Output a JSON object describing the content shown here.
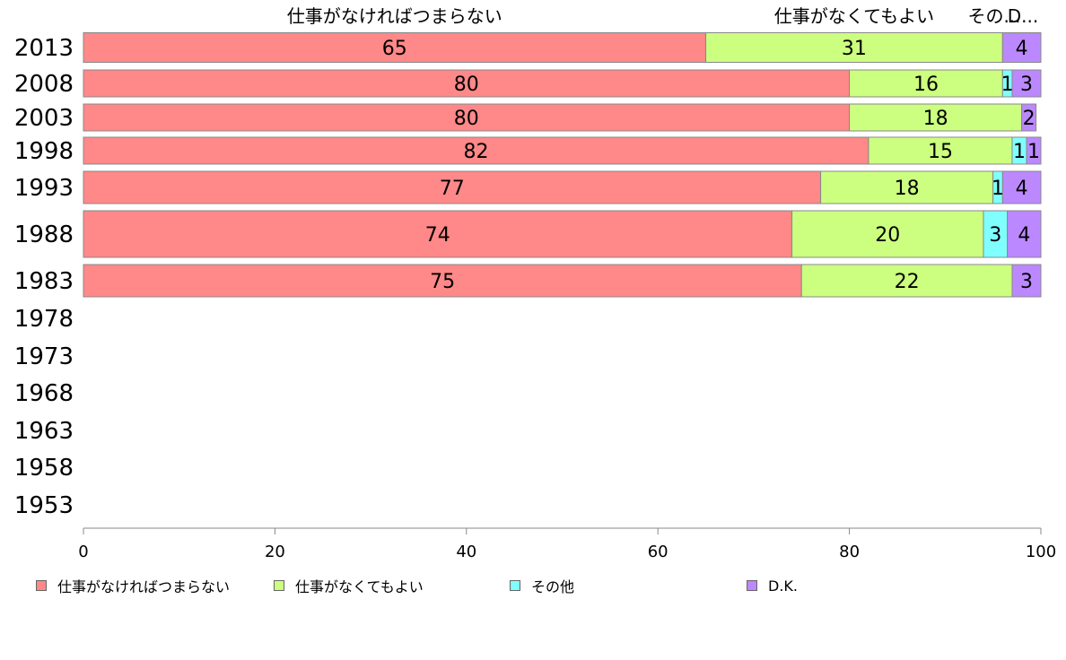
{
  "chart_data": {
    "type": "bar",
    "orientation": "horizontal",
    "stacked": true,
    "categories": [
      "2013",
      "2008",
      "2003",
      "1998",
      "1993",
      "1988",
      "1983",
      "1978",
      "1973",
      "1968",
      "1963",
      "1958",
      "1953"
    ],
    "series": [
      {
        "name": "仕事がなければつまらない",
        "color": "#ff8888",
        "values": [
          65,
          80,
          80,
          82,
          77,
          74,
          75,
          null,
          null,
          null,
          null,
          null,
          null
        ],
        "labels": [
          "65",
          "80",
          "80",
          "82",
          "77",
          "74",
          "75",
          "",
          "",
          "",
          "",
          "",
          ""
        ]
      },
      {
        "name": "仕事がなくてもよい",
        "color": "#ccff80",
        "values": [
          31,
          16,
          18,
          15,
          18,
          20,
          22,
          null,
          null,
          null,
          null,
          null,
          null
        ],
        "labels": [
          "31",
          "16",
          "18",
          "15",
          "18",
          "20",
          "22",
          "",
          "",
          "",
          "",
          "",
          ""
        ]
      },
      {
        "name": "その他",
        "color": "#80ffff",
        "values": [
          0,
          1,
          0,
          1.5,
          1,
          2.5,
          0,
          null,
          null,
          null,
          null,
          null,
          null
        ],
        "labels": [
          "",
          "1",
          "",
          "1",
          "1",
          "3",
          "",
          "",
          "",
          "",
          "",
          "",
          ""
        ]
      },
      {
        "name": "D.K.",
        "color": "#bb88ff",
        "values": [
          4,
          3,
          1.5,
          1.5,
          4,
          3.5,
          3,
          null,
          null,
          null,
          null,
          null,
          null
        ],
        "labels": [
          "4",
          "3",
          "2",
          "1",
          "4",
          "4",
          "3",
          "",
          "",
          "",
          "",
          "",
          ""
        ]
      }
    ],
    "top_labels": [
      "仕事がなければつまらない",
      "仕事がなくてもよい",
      "その...",
      "D..."
    ],
    "xlim": [
      0,
      100
    ],
    "xticks": [
      0,
      20,
      40,
      60,
      80,
      100
    ],
    "grid": false,
    "legend_position": "bottom"
  }
}
